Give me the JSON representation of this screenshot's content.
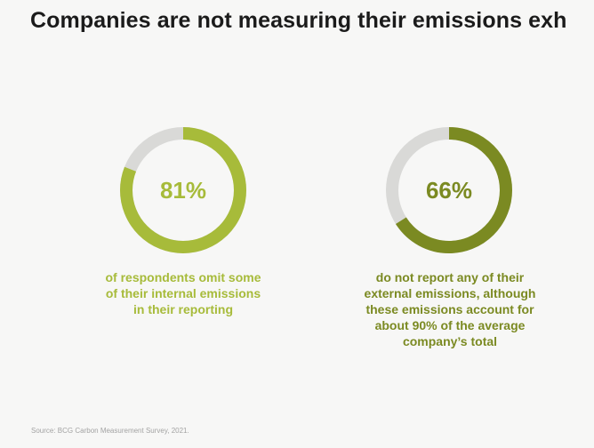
{
  "title": "Companies are not measuring their emissions exh",
  "source": "Source: BCG Carbon Measurement Survey, 2021.",
  "colors": {
    "background": "#f7f7f6",
    "track": "#d9d9d7",
    "accent_light": "#a7bb3a",
    "accent_dark": "#7b8a22",
    "title": "#1b1b1b"
  },
  "chart_data": [
    {
      "type": "pie",
      "label": "81%",
      "values": [
        81,
        19
      ],
      "color": "#a7bb3a",
      "caption_lines": [
        "of respondents omit some",
        "of their internal emissions",
        "in their reporting"
      ]
    },
    {
      "type": "pie",
      "label": "66%",
      "values": [
        66,
        34
      ],
      "color": "#7b8a22",
      "caption_lines": [
        "do not report any of their",
        "external emissions, although",
        "these emissions account for",
        "about 90% of the average",
        "company’s total"
      ]
    }
  ]
}
